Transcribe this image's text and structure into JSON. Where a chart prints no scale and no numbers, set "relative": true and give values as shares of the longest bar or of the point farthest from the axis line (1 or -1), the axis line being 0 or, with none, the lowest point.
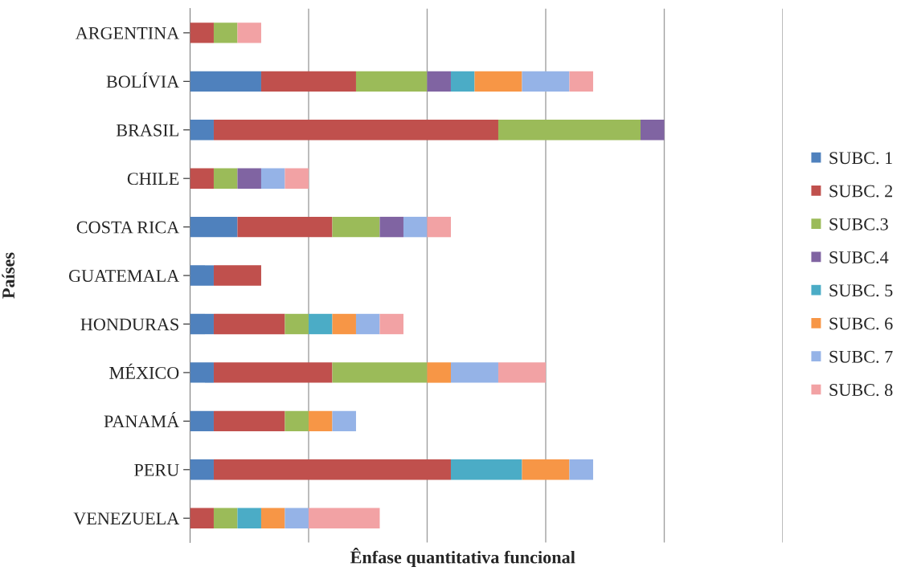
{
  "chart_data": {
    "type": "bar",
    "orientation": "horizontal",
    "stacked": true,
    "relative": true,
    "grid": "x",
    "legend": "right",
    "xlabel": "Ênfase quantitativa funcional",
    "ylabel": "Países",
    "categories": [
      "ARGENTINA",
      "BOLÍVIA",
      "BRASIL",
      "CHILE",
      "COSTA RICA",
      "GUATEMALA",
      "HONDURAS",
      "MÉXICO",
      "PANAMÁ",
      "PERU",
      "VENEZUELA"
    ],
    "series": [
      {
        "name": "SUBC. 1",
        "color": "#4f81bd",
        "values": [
          0,
          0.15,
          0.05,
          0,
          0.1,
          0.05,
          0.05,
          0.05,
          0.05,
          0.05,
          0
        ]
      },
      {
        "name": "SUBC. 2",
        "color": "#c0504d",
        "values": [
          0.05,
          0.2,
          0.6,
          0.05,
          0.2,
          0.1,
          0.15,
          0.25,
          0.15,
          0.5,
          0.05
        ]
      },
      {
        "name": "SUBC.3",
        "color": "#9bbb59",
        "values": [
          0.05,
          0.15,
          0.3,
          0.05,
          0.1,
          0,
          0.05,
          0.2,
          0.05,
          0,
          0.05
        ]
      },
      {
        "name": "SUBC.4",
        "color": "#8064a2",
        "values": [
          0,
          0.05,
          0.05,
          0.05,
          0.05,
          0,
          0,
          0,
          0,
          0,
          0
        ]
      },
      {
        "name": "SUBC. 5",
        "color": "#4bacc6",
        "values": [
          0,
          0.05,
          0,
          0,
          0,
          0,
          0.05,
          0,
          0,
          0.15,
          0.05
        ]
      },
      {
        "name": "SUBC. 6",
        "color": "#f79646",
        "values": [
          0,
          0.1,
          0,
          0,
          0,
          0,
          0.05,
          0.05,
          0.05,
          0.1,
          0.05
        ]
      },
      {
        "name": "SUBC. 7",
        "color": "#95b3e7",
        "values": [
          0,
          0.1,
          0,
          0.05,
          0.05,
          0,
          0.05,
          0.1,
          0.05,
          0.05,
          0.05
        ]
      },
      {
        "name": "SUBC. 8",
        "color": "#f2a2a4",
        "values": [
          0.05,
          0.05,
          0,
          0.05,
          0.05,
          0,
          0.05,
          0.1,
          0,
          0,
          0.15
        ]
      }
    ]
  }
}
